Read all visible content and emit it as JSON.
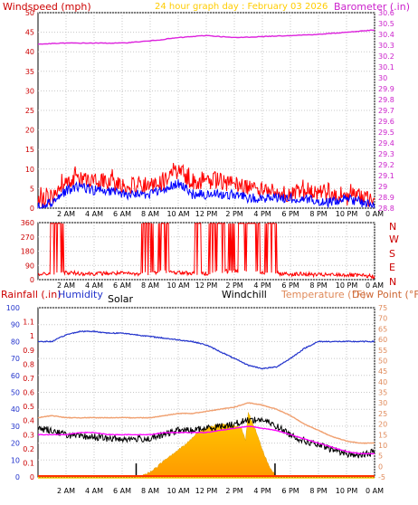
{
  "panel1": {
    "left_title": "Windspeed (mph)",
    "center_title": "24 hour graph day : February 03 2026",
    "right_title": "Barometer (.in)"
  },
  "panel2": {
    "compass_labels": [
      "N",
      "W",
      "S",
      "E",
      "N"
    ]
  },
  "panel3": {
    "rainfall_label": "Rainfall (.in)",
    "humidity_label": "Humidity",
    "solar_label": "Solar",
    "windchill_label": "Windchill",
    "temperature_label": "Temperature (°F)",
    "dewpoint_label": "Dew Point (°F)"
  },
  "colors": {
    "windspeed": "#ff0000",
    "wind_avg": "#0000ff",
    "barometer": "#dd22dd",
    "temperature": "#f0a070",
    "dewpoint": "#ff00ff",
    "windchill": "#000000",
    "humidity": "#2233cc",
    "solar": "#ffcc00",
    "title_date": "#ffcc00"
  },
  "chart_data": [
    {
      "type": "line",
      "x_unit": "hour of day (0 = 12 AM start, 24 = next 0 AM)",
      "x_ticks": [
        "2 AM",
        "4 AM",
        "6 AM",
        "8 AM",
        "10 AM",
        "12 PM",
        "2 PM",
        "4 PM",
        "6 PM",
        "8 PM",
        "10 PM",
        "0 AM"
      ],
      "y_left_ticks": [
        "0",
        "5",
        "10",
        "15",
        "20",
        "25",
        "30",
        "35",
        "40",
        "45",
        "50"
      ],
      "y_left_range": [
        0,
        50
      ],
      "y_right_ticks": [
        "28.8",
        "28.9",
        "29",
        "29.1",
        "29.2",
        "29.3",
        "29.4",
        "29.5",
        "29.6",
        "29.7",
        "29.8",
        "29.9",
        "30",
        "30.1",
        "30.2",
        "30.3",
        "30.4",
        "30.5",
        "30.6"
      ],
      "y_right_range": [
        28.8,
        30.6
      ],
      "grid": true,
      "series": [
        {
          "name": "Windspeed (mph)",
          "axis": "left",
          "x": [
            0,
            1,
            2,
            3,
            4,
            5,
            6,
            7,
            8,
            9,
            10,
            11,
            12,
            13,
            14,
            15,
            16,
            17,
            18,
            19,
            20,
            21,
            22,
            23,
            24
          ],
          "values": [
            4,
            5,
            9,
            10,
            9,
            9,
            8,
            8,
            8,
            9,
            12,
            9,
            9,
            9,
            8,
            7,
            7,
            6,
            6,
            6,
            6,
            5,
            5,
            5,
            4
          ]
        },
        {
          "name": "Wind average",
          "axis": "left",
          "x": [
            0,
            1,
            2,
            3,
            4,
            5,
            6,
            7,
            8,
            9,
            10,
            11,
            12,
            13,
            14,
            15,
            16,
            17,
            18,
            19,
            20,
            21,
            22,
            23,
            24
          ],
          "values": [
            1,
            2,
            5,
            6,
            5,
            5,
            4,
            4,
            4,
            5,
            7,
            4,
            4,
            4,
            4,
            3,
            3,
            3,
            3,
            3,
            2,
            2,
            3,
            2,
            1
          ]
        },
        {
          "name": "Barometer (.in)",
          "axis": "right",
          "x": [
            0,
            2,
            4,
            6,
            8,
            10,
            12,
            14,
            16,
            18,
            20,
            22,
            24
          ],
          "values": [
            30.31,
            30.32,
            30.32,
            30.32,
            30.34,
            30.37,
            30.39,
            30.37,
            30.38,
            30.39,
            30.4,
            30.42,
            30.44
          ]
        }
      ]
    },
    {
      "type": "scatter",
      "x_ticks": [
        "2 AM",
        "4 AM",
        "6 AM",
        "8 AM",
        "10 AM",
        "12 PM",
        "2 PM",
        "4 PM",
        "6 PM",
        "8 PM",
        "10 PM",
        "0 AM"
      ],
      "y_ticks": [
        "0",
        "90",
        "180",
        "270",
        "360"
      ],
      "y_range": [
        0,
        360
      ],
      "series": [
        {
          "name": "Wind direction (deg)",
          "x": [
            0,
            1,
            2,
            3,
            4,
            5,
            6,
            7,
            8,
            9,
            10,
            11,
            12,
            13,
            14,
            15,
            16,
            17,
            18,
            19,
            20,
            21,
            22,
            23,
            24
          ],
          "values": [
            30,
            40,
            45,
            40,
            38,
            40,
            40,
            35,
            40,
            50,
            45,
            40,
            40,
            50,
            55,
            55,
            45,
            40,
            35,
            35,
            30,
            30,
            30,
            25,
            20
          ],
          "spikes_to_360": [
            [
              0.9,
              1.8
            ],
            [
              7.4,
              8.2
            ],
            [
              8.6,
              9.3
            ],
            [
              11.2,
              11.6
            ],
            [
              12.2,
              13.3
            ],
            [
              13.6,
              14.0
            ],
            [
              14.3,
              15.8
            ],
            [
              16.2,
              17.0
            ]
          ]
        }
      ]
    },
    {
      "type": "line",
      "x_ticks": [
        "2 AM",
        "4 AM",
        "6 AM",
        "8 AM",
        "10 AM",
        "12 PM",
        "2 PM",
        "4 PM",
        "6 PM",
        "8 PM",
        "10 PM",
        "0 AM"
      ],
      "y_humidity_ticks": [
        "0",
        "10",
        "20",
        "30",
        "40",
        "50",
        "60",
        "70",
        "80",
        "90",
        "100"
      ],
      "y_humidity_range": [
        0,
        100
      ],
      "y_rain_ticks": [
        "0",
        "0.1",
        "0.2",
        "0.3",
        "0.4",
        "0.5",
        "0.6",
        "0.7",
        "0.8",
        "0.9",
        "1",
        "1.1"
      ],
      "y_rain_range": [
        0,
        1.2
      ],
      "y_temp_ticks": [
        "-5",
        "0",
        "5",
        "10",
        "15",
        "20",
        "25",
        "30",
        "35",
        "40",
        "45",
        "50",
        "55",
        "60",
        "65",
        "70",
        "75"
      ],
      "y_temp_range": [
        -5,
        75
      ],
      "series": [
        {
          "name": "Humidity",
          "axis": "humidity",
          "x": [
            0,
            1,
            2,
            3,
            4,
            5,
            6,
            7,
            8,
            9,
            10,
            11,
            12,
            13,
            14,
            15,
            16,
            17,
            18,
            19,
            20,
            21,
            22,
            23,
            24
          ],
          "values": [
            80,
            80,
            84,
            86,
            86,
            85,
            85,
            84,
            83,
            82,
            81,
            80,
            78,
            74,
            70,
            66,
            64,
            65,
            70,
            76,
            80,
            80,
            80,
            80,
            80
          ]
        },
        {
          "name": "Temperature (°F)",
          "axis": "temp",
          "x": [
            0,
            1,
            2,
            3,
            4,
            5,
            6,
            7,
            8,
            9,
            10,
            11,
            12,
            13,
            14,
            15,
            16,
            17,
            18,
            19,
            20,
            21,
            22,
            23,
            24
          ],
          "values": [
            23,
            24,
            23,
            23,
            23,
            23,
            23,
            23,
            23,
            24,
            25,
            25,
            26,
            27,
            28,
            30,
            29,
            27,
            24,
            20,
            17,
            14,
            12,
            11,
            11
          ]
        },
        {
          "name": "Dew Point (°F)",
          "axis": "temp",
          "x": [
            0,
            1,
            2,
            3,
            4,
            5,
            6,
            7,
            8,
            9,
            10,
            11,
            12,
            13,
            14,
            15,
            16,
            17,
            18,
            19,
            20,
            21,
            22,
            23,
            24
          ],
          "values": [
            15,
            15,
            15,
            16,
            16,
            15,
            15,
            15,
            15,
            16,
            16,
            16,
            16,
            17,
            18,
            19,
            18,
            17,
            15,
            13,
            11,
            9,
            7,
            6,
            6
          ]
        },
        {
          "name": "Windchill",
          "axis": "temp",
          "x": [
            0,
            1,
            2,
            3,
            4,
            5,
            6,
            7,
            8,
            9,
            10,
            11,
            12,
            13,
            14,
            15,
            16,
            17,
            18,
            19,
            20,
            21,
            22,
            23,
            24
          ],
          "values": [
            18,
            17,
            15,
            14,
            14,
            13,
            13,
            13,
            13,
            15,
            17,
            17,
            18,
            19,
            20,
            22,
            22,
            19,
            15,
            12,
            10,
            8,
            6,
            5,
            7
          ]
        },
        {
          "name": "Solar",
          "axis": "humidity",
          "x": [
            7.0,
            7.5,
            8.0,
            8.5,
            9.0,
            9.5,
            10.0,
            10.5,
            11.0,
            11.5,
            12.0,
            12.5,
            13.0,
            13.5,
            14.0,
            14.5,
            14.8,
            15.0,
            15.5,
            16.0,
            16.5,
            17.0
          ],
          "values": [
            0,
            1,
            3,
            6,
            10,
            13,
            16,
            19,
            23,
            27,
            29,
            30,
            31,
            31,
            30,
            29,
            22,
            38,
            28,
            16,
            6,
            0
          ]
        },
        {
          "name": "Rainfall (.in)",
          "axis": "rain",
          "x": [
            0,
            24
          ],
          "values": [
            0,
            0
          ]
        }
      ]
    }
  ]
}
